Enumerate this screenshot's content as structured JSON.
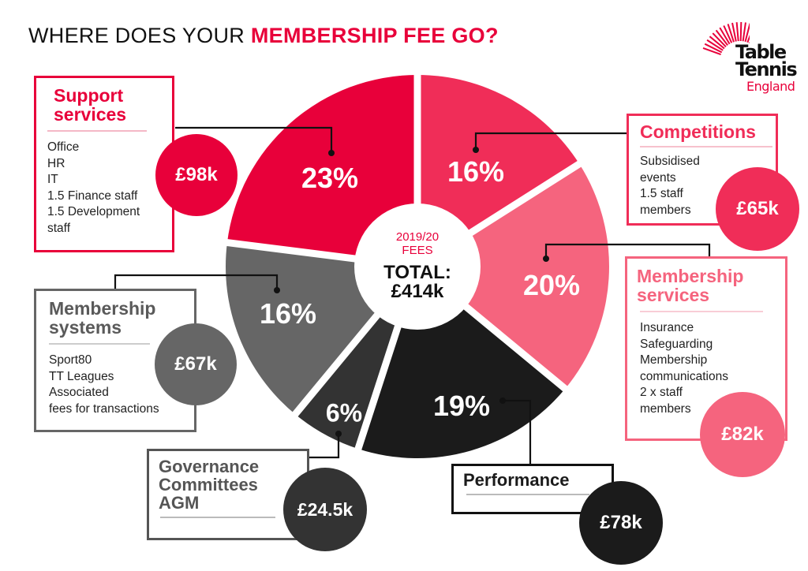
{
  "title": {
    "lead": "WHERE DOES YOUR ",
    "accent": "MEMBERSHIP FEE GO?"
  },
  "logo": {
    "line1": "Table",
    "line2": "Tennis",
    "line3": "England"
  },
  "center": {
    "season": "2019/20",
    "label": "FEES",
    "total_label": "TOTAL:",
    "total_value": "£414k"
  },
  "categories": [
    {
      "id": "support",
      "title": [
        "Support",
        "services"
      ],
      "items": [
        "Office",
        "HR",
        "IT",
        "1.5 Finance staff",
        "1.5 Development",
        "staff"
      ],
      "amount": "£98k",
      "percent": "23%",
      "color": "#e8003a"
    },
    {
      "id": "competitions",
      "title": [
        "Competitions"
      ],
      "items": [
        "Subsidised",
        "events",
        "1.5 staff",
        "members"
      ],
      "amount": "£65k",
      "percent": "16%",
      "color": "#f02d58"
    },
    {
      "id": "membership_services",
      "title": [
        "Membership",
        "services"
      ],
      "items": [
        "Insurance",
        "Safeguarding",
        "Membership",
        "communications",
        "2 x staff",
        "members"
      ],
      "amount": "£82k",
      "percent": "20%",
      "color": "#f5647e"
    },
    {
      "id": "performance",
      "title": [
        "Performance"
      ],
      "items": [],
      "amount": "£78k",
      "percent": "19%",
      "color": "#1b1b1b"
    },
    {
      "id": "governance",
      "title": [
        "Governance",
        "Committees",
        "AGM"
      ],
      "items": [],
      "amount": "£24.5k",
      "percent": "6%",
      "color": "#333333"
    },
    {
      "id": "membership_systems",
      "title": [
        "Membership",
        "systems"
      ],
      "items": [
        "Sport80",
        "TT Leagues",
        "Associated",
        "fees for transactions"
      ],
      "amount": "£67k",
      "percent": "16%",
      "color": "#666666"
    }
  ],
  "chart_data": {
    "type": "pie",
    "title": "WHERE DOES YOUR MEMBERSHIP FEE GO?",
    "subtitle": "2019/20 FEES TOTAL: £414k",
    "categories": [
      "Support services",
      "Competitions",
      "Membership services",
      "Performance",
      "Governance / Committees / AGM",
      "Membership systems"
    ],
    "values": [
      23,
      16,
      20,
      19,
      6,
      16
    ],
    "amounts_gbp_k": [
      98,
      65,
      82,
      78,
      24.5,
      67
    ],
    "total_gbp_k": 414,
    "colors": [
      "#e8003a",
      "#f02d58",
      "#f5647e",
      "#1b1b1b",
      "#333333",
      "#666666"
    ],
    "donut": true,
    "legend": "callout boxes"
  }
}
